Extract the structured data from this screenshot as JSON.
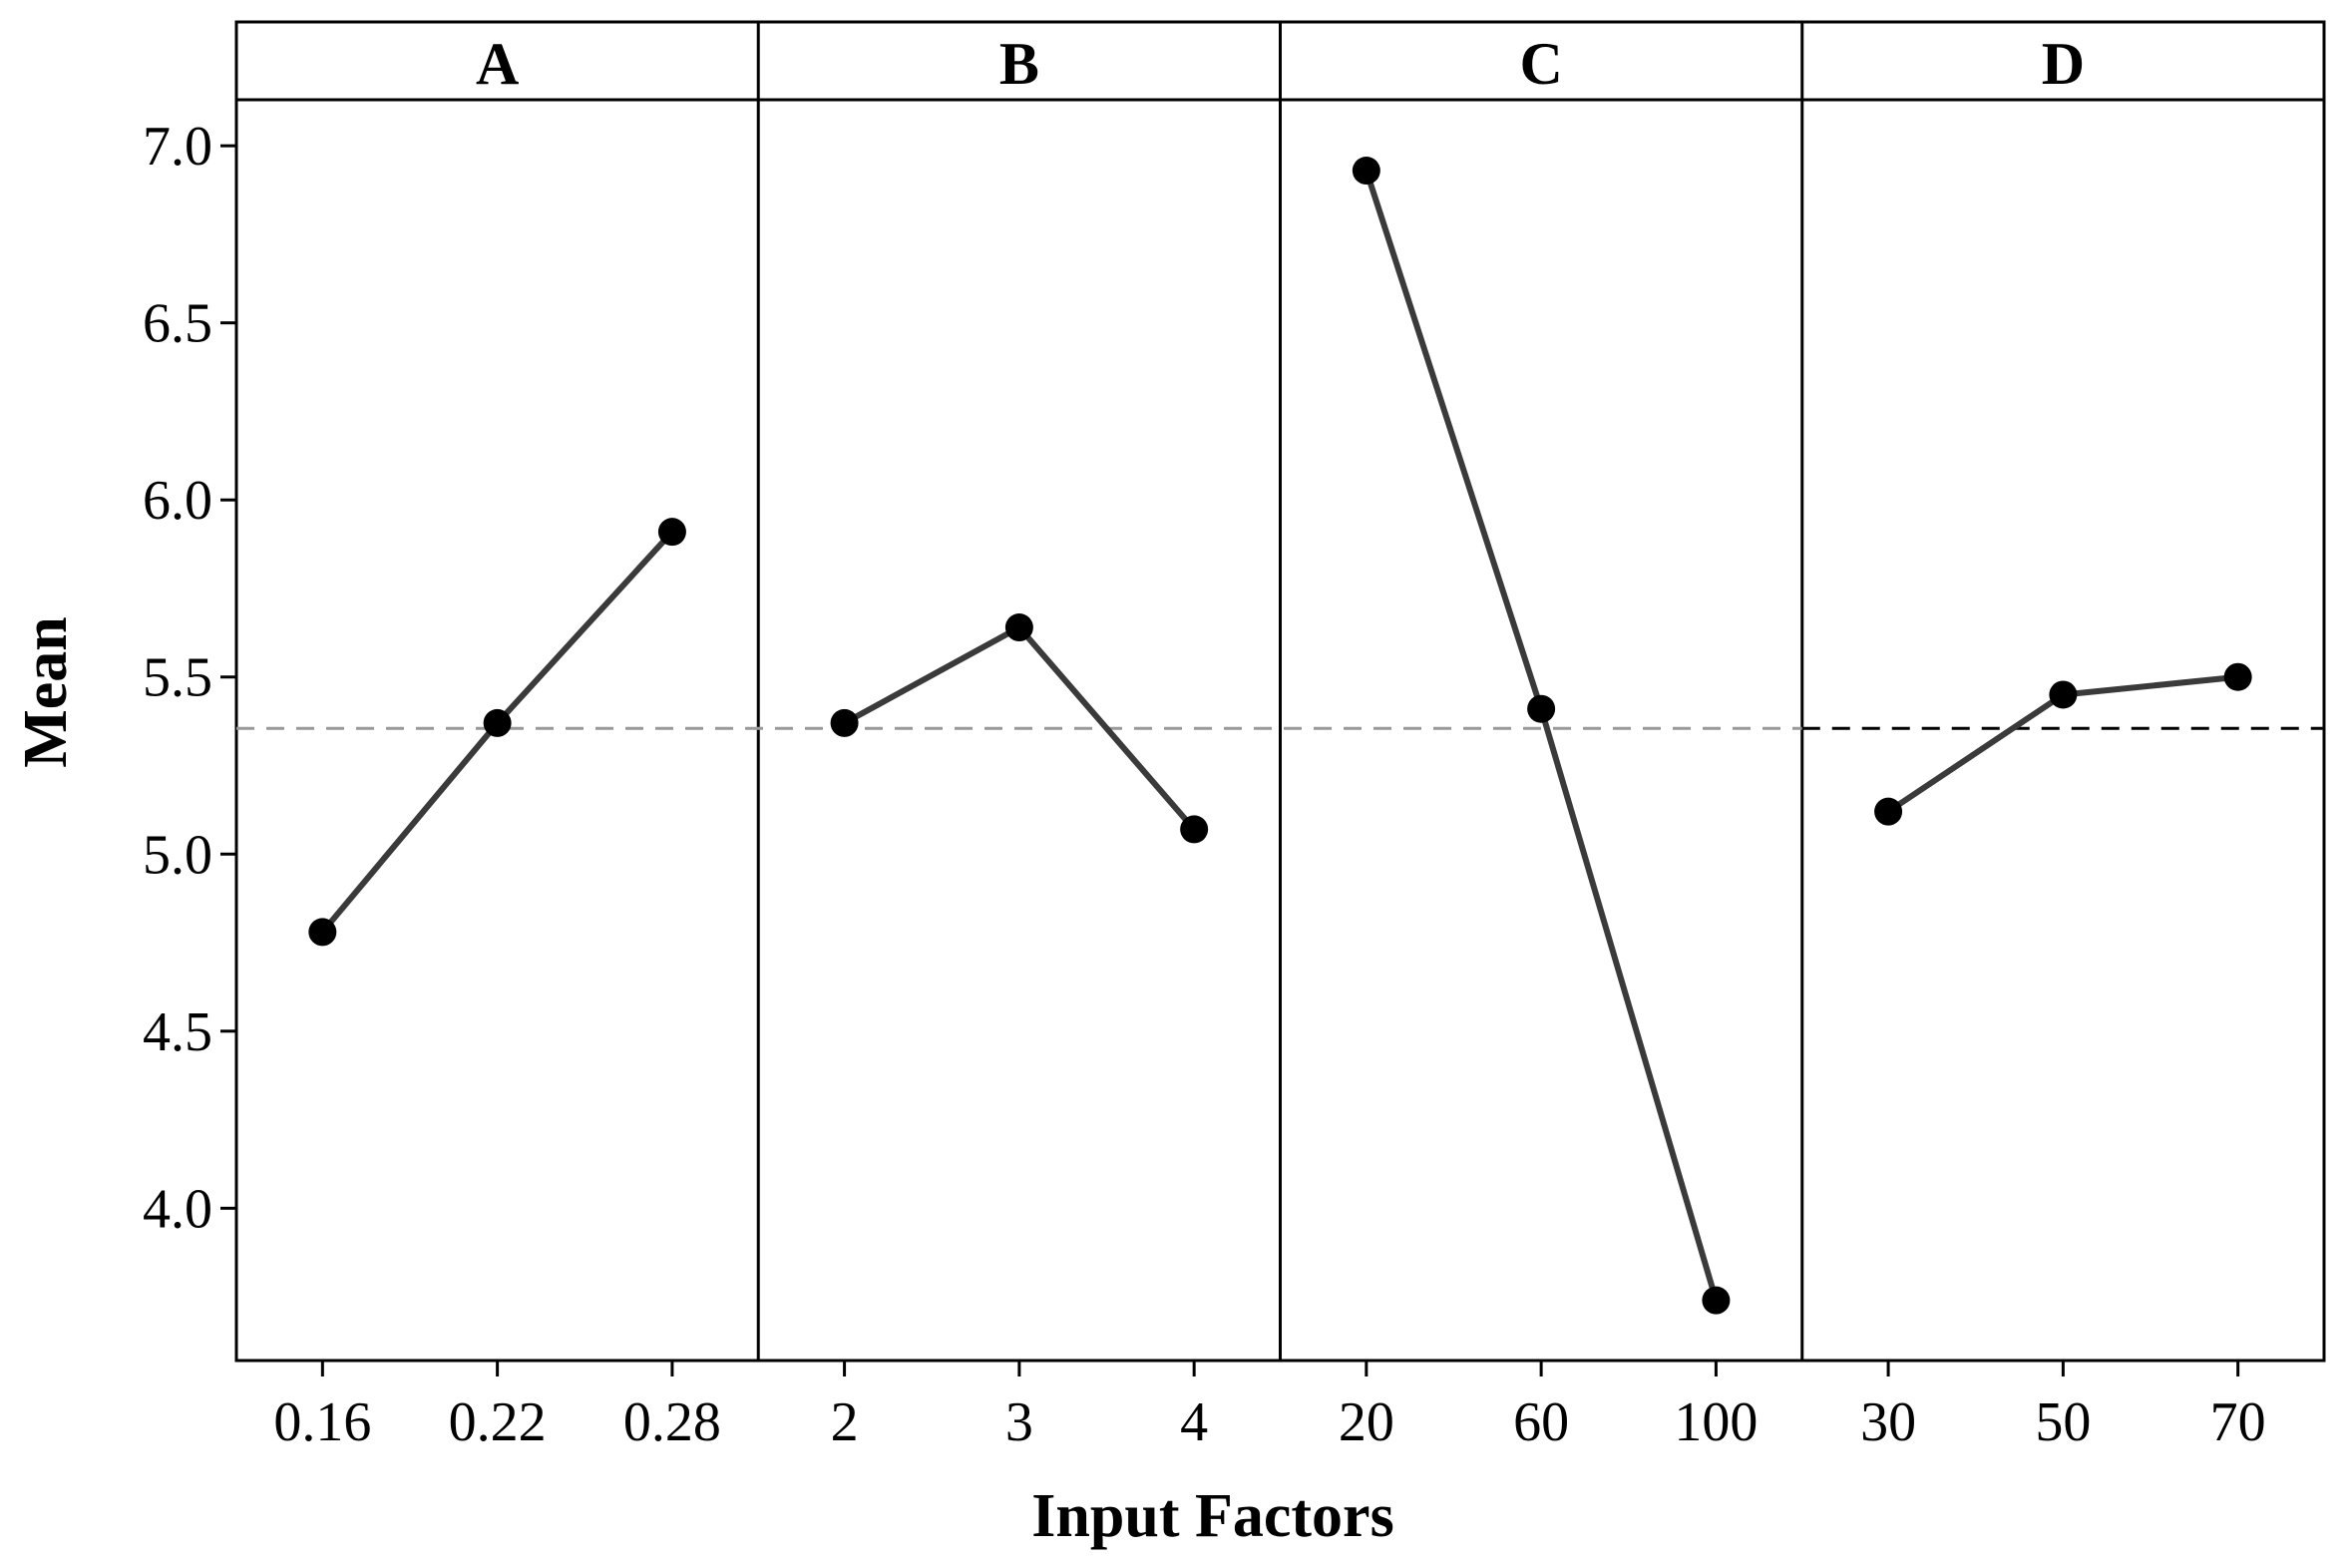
{
  "chart_data": {
    "type": "line",
    "xlabel": "Input Factors",
    "ylabel": "Mean",
    "ylim": [
      3.57,
      7.13
    ],
    "yticks": [
      "4.0",
      "4.5",
      "5.0",
      "5.5",
      "6.0",
      "6.5",
      "7.0"
    ],
    "reference_line": {
      "value": 5.355,
      "style": "dashed"
    },
    "grid": false,
    "panels": [
      {
        "name": "A",
        "levels": [
          "0.16",
          "0.22",
          "0.28"
        ],
        "values": [
          4.78,
          5.37,
          5.91
        ]
      },
      {
        "name": "B",
        "levels": [
          "2",
          "3",
          "4"
        ],
        "values": [
          5.37,
          5.64,
          5.07
        ]
      },
      {
        "name": "C",
        "levels": [
          "20",
          "60",
          "100"
        ],
        "values": [
          6.93,
          5.41,
          3.74
        ]
      },
      {
        "name": "D",
        "levels": [
          "30",
          "50",
          "70"
        ],
        "values": [
          5.12,
          5.45,
          5.5
        ]
      }
    ]
  },
  "colors": {
    "line": "#3a3a3a",
    "point": "#000000",
    "reference_gray": "#999999",
    "reference_dark": "#000000"
  }
}
